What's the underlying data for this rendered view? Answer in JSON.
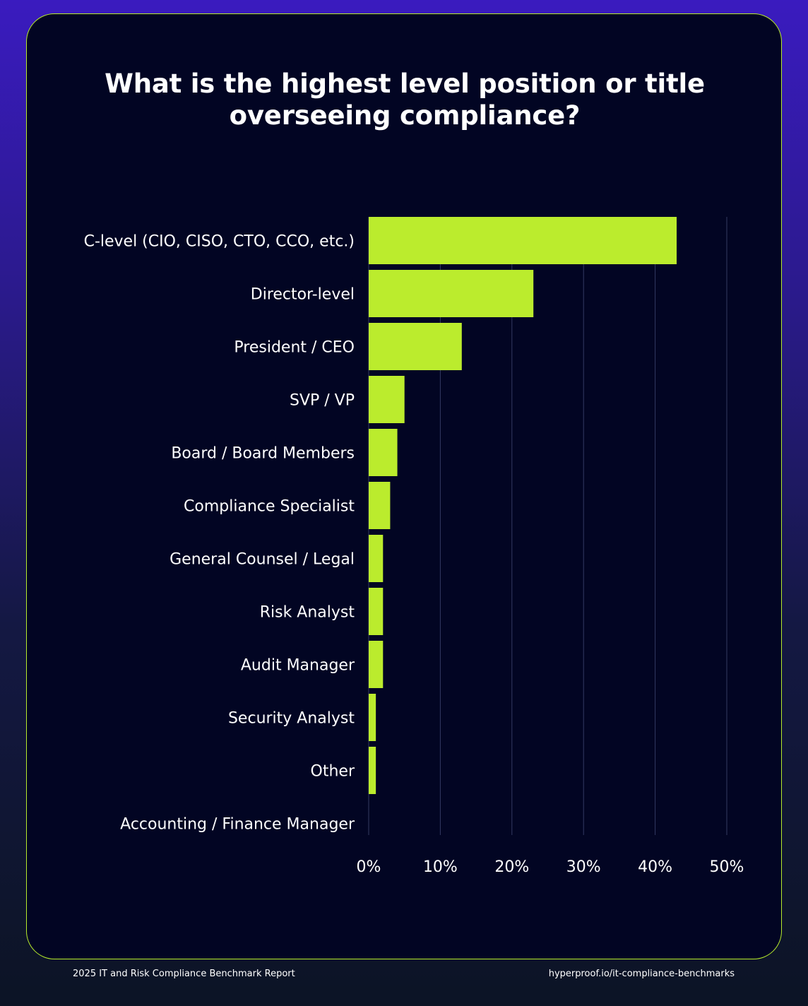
{
  "footer": {
    "left": "2025 IT and Risk Compliance Benchmark Report",
    "right": "hyperproof.io/it-compliance-benchmarks"
  },
  "chart_data": {
    "type": "bar",
    "orientation": "horizontal",
    "title_lines": [
      "What is the highest level position or title",
      "overseeing compliance?"
    ],
    "title": "What is the highest level position or title overseeing compliance?",
    "categories": [
      "C-level (CIO, CISO, CTO, CCO, etc.)",
      "Director-level",
      "President / CEO",
      "SVP / VP",
      "Board / Board Members",
      "Compliance Specialist",
      "General Counsel / Legal",
      "Risk Analyst",
      "Audit Manager",
      "Security Analyst",
      "Other",
      "Accounting / Finance Manager"
    ],
    "values": [
      43,
      23,
      13,
      5,
      4,
      3,
      2,
      2,
      2,
      1,
      1,
      0
    ],
    "xlim": [
      0,
      50
    ],
    "xticks": [
      0,
      10,
      20,
      30,
      40,
      50
    ],
    "xtick_labels": [
      "0%",
      "10%",
      "20%",
      "30%",
      "40%",
      "50%"
    ],
    "xlabel": "",
    "ylabel": "",
    "grid": "vertical",
    "legend": "none",
    "colors": {
      "bar": "#bbec2d",
      "grid": "#343a62",
      "text": "#ffffff",
      "card_background": "#020523",
      "card_border": "#b7eb2c"
    }
  }
}
